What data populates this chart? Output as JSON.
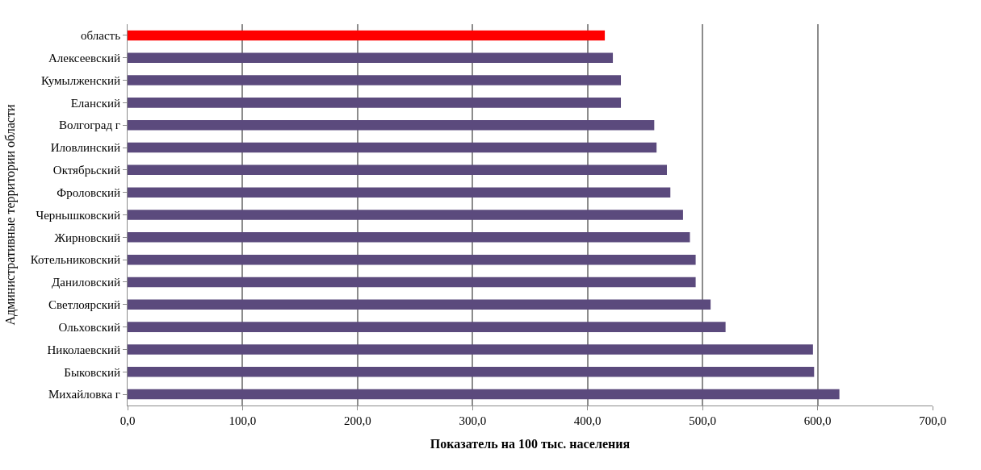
{
  "chart_data": {
    "type": "bar",
    "orientation": "horizontal",
    "xlabel": "Показатель на 100 тыс. населения",
    "ylabel": "Административные территории области",
    "categories": [
      "область",
      "Алексеевский",
      "Кумылженский",
      "Еланский",
      "Волгоград г",
      "Иловлинский",
      "Октябрьский",
      "Фроловский",
      "Чернышковский",
      "Жирновский",
      "Котельниковский",
      "Даниловский",
      "Светлоярский",
      "Ольховский",
      "Николаевский",
      "Быковский",
      "Михайловка г"
    ],
    "values": [
      415,
      422,
      429,
      429,
      458,
      460,
      469,
      472,
      483,
      489,
      494,
      494,
      507,
      520,
      596,
      597,
      619
    ],
    "colors": [
      "#ff0000",
      "#5b4a7d",
      "#5b4a7d",
      "#5b4a7d",
      "#5b4a7d",
      "#5b4a7d",
      "#5b4a7d",
      "#5b4a7d",
      "#5b4a7d",
      "#5b4a7d",
      "#5b4a7d",
      "#5b4a7d",
      "#5b4a7d",
      "#5b4a7d",
      "#5b4a7d",
      "#5b4a7d",
      "#5b4a7d"
    ],
    "xlim": [
      0,
      700
    ],
    "xticks": [
      {
        "value": 0,
        "label": "0,0"
      },
      {
        "value": 100,
        "label": "100,0"
      },
      {
        "value": 200,
        "label": "200,0"
      },
      {
        "value": 300,
        "label": "300,0"
      },
      {
        "value": 400,
        "label": "400,0"
      },
      {
        "value": 500,
        "label": "500,0"
      },
      {
        "value": 600,
        "label": "600,0"
      },
      {
        "value": 700,
        "label": "700,0"
      }
    ],
    "grid": "x",
    "legend": false
  }
}
